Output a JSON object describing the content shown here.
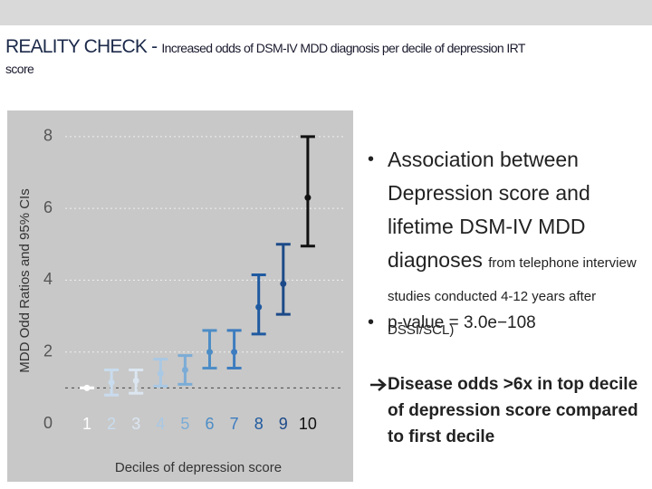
{
  "slide": {
    "title_lead": "REALITY CHECK - ",
    "title_rest": "Increased odds of DSM-IV MDD diagnosis per decile of depression IRT score",
    "bullet_1_main": "Association between Depression score and lifetime DSM-IV MDD diagnoses",
    "bullet_1_note": "from telephone interview studies conducted 4-12 years after DSSI/SCL)",
    "bullet_2": "p-value = 3.0e−108",
    "conclusion": "Disease odds >6x in top decile of depression score compared to first decile"
  },
  "chart_data": {
    "type": "errorbar",
    "x_label": "Deciles of depression score",
    "y_label": "MDD Odd Ratios and 95% CIs",
    "categories": [
      "1",
      "2",
      "3",
      "4",
      "5",
      "6",
      "7",
      "8",
      "9",
      "10"
    ],
    "values": [
      1.0,
      1.15,
      1.2,
      1.4,
      1.5,
      2.0,
      2.0,
      3.25,
      3.9,
      6.3
    ],
    "ci_low": [
      1.0,
      0.8,
      0.85,
      1.05,
      1.1,
      1.55,
      1.55,
      2.5,
      3.05,
      4.95
    ],
    "ci_high": [
      1.0,
      1.5,
      1.5,
      1.8,
      1.9,
      2.6,
      2.6,
      4.15,
      5.0,
      8.0
    ],
    "colors": [
      "#ffffff",
      "#c9dcee",
      "#dbe6f1",
      "#a9c8e4",
      "#7bacd6",
      "#4d8dc6",
      "#3d7cbf",
      "#1f5aa0",
      "#1c4a88",
      "#111111"
    ],
    "ylim": [
      0,
      8.5
    ],
    "yticks": [
      0,
      2,
      4,
      6,
      8
    ],
    "reference_line": 1,
    "grid": true
  }
}
